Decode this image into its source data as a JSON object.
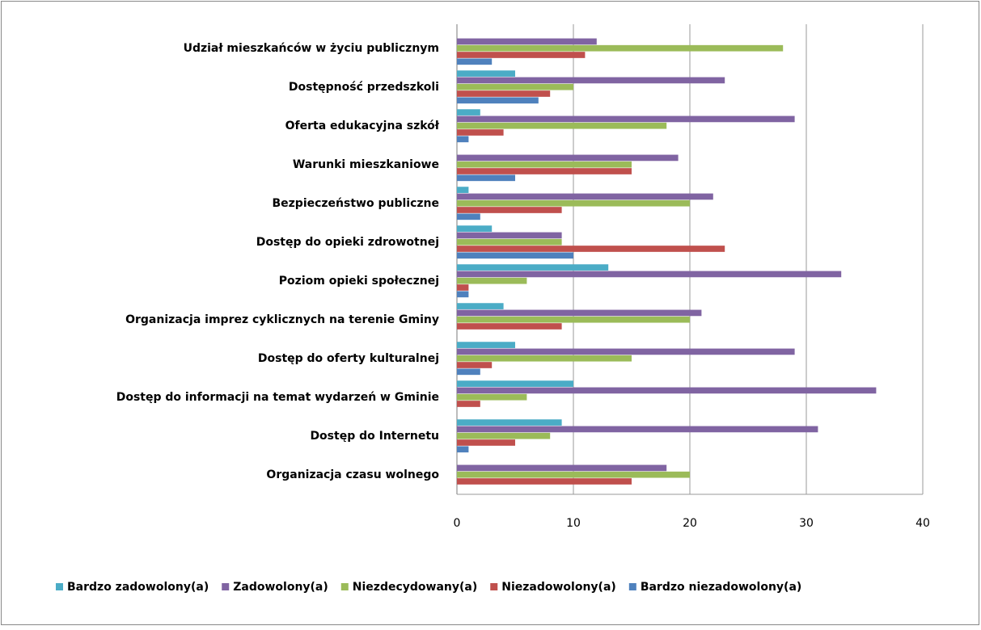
{
  "chart_data": {
    "type": "barh",
    "categories": [
      "Udział mieszkańców w życiu publicznym",
      "Dostępność przedszkoli",
      "Oferta edukacyjna szkół",
      "Warunki mieszkaniowe",
      "Bezpieczeństwo publiczne",
      "Dostęp do opieki zdrowotnej",
      "Poziom opieki społecznej",
      "Organizacja imprez cyklicznych na terenie Gminy",
      "Dostęp do oferty kulturalnej",
      "Dostęp do informacji na temat wydarzeń w Gminie",
      "Dostęp do Internetu",
      "Organizacja czasu wolnego"
    ],
    "series": [
      {
        "name": "Bardzo zadowolony(a)",
        "color": "#4bacc6",
        "values": [
          0,
          5,
          2,
          0,
          1,
          3,
          13,
          4,
          5,
          10,
          9,
          0
        ]
      },
      {
        "name": "Zadowolony(a)",
        "color": "#8064a2",
        "values": [
          12,
          23,
          29,
          19,
          22,
          9,
          33,
          21,
          29,
          36,
          31,
          18
        ]
      },
      {
        "name": "Niezdecydowany(a)",
        "color": "#9bbb59",
        "values": [
          28,
          10,
          18,
          15,
          20,
          9,
          6,
          20,
          15,
          6,
          8,
          20
        ]
      },
      {
        "name": "Niezadowolony(a)",
        "color": "#c0504d",
        "values": [
          11,
          8,
          4,
          15,
          9,
          23,
          1,
          9,
          3,
          2,
          5,
          15
        ]
      },
      {
        "name": "Bardzo niezadowolony(a)",
        "color": "#4f81bd",
        "values": [
          3,
          7,
          1,
          5,
          2,
          10,
          1,
          0,
          2,
          0,
          1,
          0
        ]
      }
    ],
    "xlim": [
      0,
      40
    ],
    "xticks": [
      0,
      10,
      20,
      30,
      40
    ],
    "grid": true,
    "legend": "bottom"
  }
}
